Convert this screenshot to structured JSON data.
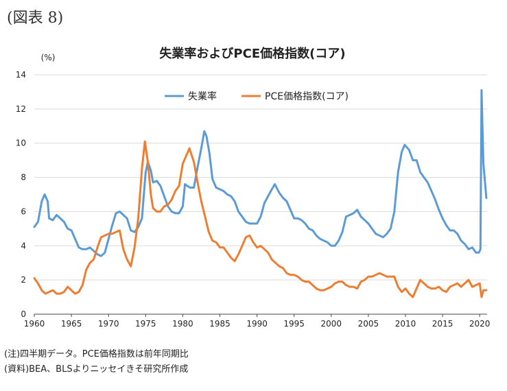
{
  "figure_label": "(図表 8)",
  "notes": {
    "note1": "(注)四半期データ。PCE価格指数は前年同期比",
    "note2": "(資料)BEA、BLSよりニッセイきそ研究所作成"
  },
  "colors": {
    "unemployment": "#5b9bd5",
    "pce": "#ed7d31",
    "grid": "#d9d9d9",
    "axis": "#444444"
  },
  "chart_data": {
    "type": "line",
    "title": "失業率およびPCE価格指数(コア)",
    "ylabel": "(%)",
    "xlabel": "",
    "xlim": [
      1960,
      2021
    ],
    "ylim": [
      0,
      14
    ],
    "yticks": [
      0,
      2,
      4,
      6,
      8,
      10,
      12,
      14
    ],
    "xticks": [
      1960,
      1965,
      1970,
      1975,
      1980,
      1985,
      1990,
      1995,
      2000,
      2005,
      2010,
      2015,
      2020
    ],
    "grid": true,
    "legend_position": "top-right",
    "series": [
      {
        "name": "失業率",
        "points": [
          [
            1960,
            5.1
          ],
          [
            1960.5,
            5.4
          ],
          [
            1961,
            6.6
          ],
          [
            1961.4,
            7.0
          ],
          [
            1961.8,
            6.6
          ],
          [
            1962,
            5.6
          ],
          [
            1962.5,
            5.5
          ],
          [
            1963,
            5.8
          ],
          [
            1963.5,
            5.6
          ],
          [
            1964,
            5.4
          ],
          [
            1964.5,
            5.0
          ],
          [
            1965,
            4.9
          ],
          [
            1965.5,
            4.4
          ],
          [
            1966,
            3.9
          ],
          [
            1966.5,
            3.8
          ],
          [
            1967,
            3.8
          ],
          [
            1967.5,
            3.9
          ],
          [
            1968,
            3.7
          ],
          [
            1968.5,
            3.5
          ],
          [
            1969,
            3.4
          ],
          [
            1969.5,
            3.6
          ],
          [
            1970,
            4.4
          ],
          [
            1970.5,
            5.2
          ],
          [
            1971,
            5.9
          ],
          [
            1971.5,
            6.0
          ],
          [
            1972,
            5.8
          ],
          [
            1972.5,
            5.6
          ],
          [
            1973,
            4.9
          ],
          [
            1973.5,
            4.8
          ],
          [
            1974,
            5.1
          ],
          [
            1974.5,
            5.6
          ],
          [
            1975,
            8.3
          ],
          [
            1975.3,
            8.9
          ],
          [
            1975.7,
            8.4
          ],
          [
            1976,
            7.7
          ],
          [
            1976.5,
            7.8
          ],
          [
            1977,
            7.5
          ],
          [
            1977.5,
            6.9
          ],
          [
            1978,
            6.3
          ],
          [
            1978.5,
            6.0
          ],
          [
            1979,
            5.9
          ],
          [
            1979.5,
            5.9
          ],
          [
            1980,
            6.3
          ],
          [
            1980.3,
            7.6
          ],
          [
            1980.6,
            7.5
          ],
          [
            1981,
            7.4
          ],
          [
            1981.5,
            7.4
          ],
          [
            1982,
            8.6
          ],
          [
            1982.5,
            9.7
          ],
          [
            1982.9,
            10.7
          ],
          [
            1983.2,
            10.4
          ],
          [
            1983.6,
            9.4
          ],
          [
            1984,
            7.9
          ],
          [
            1984.5,
            7.4
          ],
          [
            1985,
            7.3
          ],
          [
            1985.5,
            7.2
          ],
          [
            1986,
            7.0
          ],
          [
            1986.5,
            6.9
          ],
          [
            1987,
            6.6
          ],
          [
            1987.5,
            6.0
          ],
          [
            1988,
            5.7
          ],
          [
            1988.5,
            5.4
          ],
          [
            1989,
            5.3
          ],
          [
            1989.5,
            5.3
          ],
          [
            1990,
            5.3
          ],
          [
            1990.5,
            5.7
          ],
          [
            1991,
            6.5
          ],
          [
            1991.5,
            6.9
          ],
          [
            1992,
            7.3
          ],
          [
            1992.4,
            7.6
          ],
          [
            1993,
            7.1
          ],
          [
            1993.5,
            6.8
          ],
          [
            1994,
            6.6
          ],
          [
            1994.5,
            6.1
          ],
          [
            1995,
            5.6
          ],
          [
            1995.5,
            5.6
          ],
          [
            1996,
            5.5
          ],
          [
            1996.5,
            5.3
          ],
          [
            1997,
            5.0
          ],
          [
            1997.5,
            4.9
          ],
          [
            1998,
            4.6
          ],
          [
            1998.5,
            4.4
          ],
          [
            1999,
            4.3
          ],
          [
            1999.5,
            4.2
          ],
          [
            2000,
            4.0
          ],
          [
            2000.5,
            4.0
          ],
          [
            2001,
            4.3
          ],
          [
            2001.5,
            4.8
          ],
          [
            2002,
            5.7
          ],
          [
            2002.5,
            5.8
          ],
          [
            2003,
            5.9
          ],
          [
            2003.5,
            6.1
          ],
          [
            2004,
            5.7
          ],
          [
            2004.5,
            5.5
          ],
          [
            2005,
            5.3
          ],
          [
            2005.5,
            5.0
          ],
          [
            2006,
            4.7
          ],
          [
            2006.5,
            4.6
          ],
          [
            2007,
            4.5
          ],
          [
            2007.5,
            4.7
          ],
          [
            2008,
            5.0
          ],
          [
            2008.5,
            6.0
          ],
          [
            2009,
            8.3
          ],
          [
            2009.5,
            9.5
          ],
          [
            2009.9,
            9.9
          ],
          [
            2010.5,
            9.6
          ],
          [
            2011,
            9.0
          ],
          [
            2011.5,
            9.0
          ],
          [
            2012,
            8.3
          ],
          [
            2012.5,
            8.0
          ],
          [
            2013,
            7.7
          ],
          [
            2013.5,
            7.2
          ],
          [
            2014,
            6.7
          ],
          [
            2014.5,
            6.1
          ],
          [
            2015,
            5.6
          ],
          [
            2015.5,
            5.2
          ],
          [
            2016,
            4.9
          ],
          [
            2016.5,
            4.9
          ],
          [
            2017,
            4.7
          ],
          [
            2017.5,
            4.3
          ],
          [
            2018,
            4.1
          ],
          [
            2018.5,
            3.8
          ],
          [
            2019,
            3.9
          ],
          [
            2019.5,
            3.6
          ],
          [
            2019.9,
            3.6
          ],
          [
            2020.1,
            3.8
          ],
          [
            2020.25,
            13.1
          ],
          [
            2020.5,
            8.8
          ],
          [
            2020.9,
            6.8
          ]
        ]
      },
      {
        "name": "PCE価格指数(コア)",
        "points": [
          [
            1960,
            2.1
          ],
          [
            1960.5,
            1.8
          ],
          [
            1961,
            1.4
          ],
          [
            1961.5,
            1.2
          ],
          [
            1962,
            1.3
          ],
          [
            1962.5,
            1.4
          ],
          [
            1963,
            1.2
          ],
          [
            1963.5,
            1.2
          ],
          [
            1964,
            1.3
          ],
          [
            1964.5,
            1.6
          ],
          [
            1965,
            1.4
          ],
          [
            1965.5,
            1.2
          ],
          [
            1966,
            1.3
          ],
          [
            1966.5,
            1.7
          ],
          [
            1967,
            2.6
          ],
          [
            1967.5,
            3.0
          ],
          [
            1968,
            3.2
          ],
          [
            1968.5,
            3.9
          ],
          [
            1969,
            4.5
          ],
          [
            1969.5,
            4.6
          ],
          [
            1970,
            4.7
          ],
          [
            1970.5,
            4.7
          ],
          [
            1971,
            4.8
          ],
          [
            1971.5,
            4.9
          ],
          [
            1972,
            3.8
          ],
          [
            1972.5,
            3.2
          ],
          [
            1973,
            2.8
          ],
          [
            1973.5,
            3.9
          ],
          [
            1974,
            5.6
          ],
          [
            1974.5,
            8.5
          ],
          [
            1974.9,
            10.1
          ],
          [
            1975.3,
            8.9
          ],
          [
            1975.7,
            7.0
          ],
          [
            1976,
            6.2
          ],
          [
            1976.5,
            6.0
          ],
          [
            1977,
            6.0
          ],
          [
            1977.5,
            6.3
          ],
          [
            1978,
            6.4
          ],
          [
            1978.5,
            6.7
          ],
          [
            1979,
            7.2
          ],
          [
            1979.5,
            7.5
          ],
          [
            1980,
            8.8
          ],
          [
            1980.5,
            9.3
          ],
          [
            1980.9,
            9.7
          ],
          [
            1981.5,
            8.9
          ],
          [
            1982,
            7.7
          ],
          [
            1982.5,
            6.6
          ],
          [
            1983,
            5.7
          ],
          [
            1983.5,
            4.8
          ],
          [
            1984,
            4.3
          ],
          [
            1984.5,
            4.2
          ],
          [
            1985,
            3.9
          ],
          [
            1985.5,
            3.9
          ],
          [
            1986,
            3.6
          ],
          [
            1986.5,
            3.3
          ],
          [
            1987,
            3.1
          ],
          [
            1987.5,
            3.5
          ],
          [
            1988,
            4.0
          ],
          [
            1988.5,
            4.5
          ],
          [
            1989,
            4.6
          ],
          [
            1989.5,
            4.2
          ],
          [
            1990,
            3.9
          ],
          [
            1990.5,
            4.0
          ],
          [
            1991,
            3.8
          ],
          [
            1991.5,
            3.6
          ],
          [
            1992,
            3.2
          ],
          [
            1992.5,
            3.0
          ],
          [
            1993,
            2.8
          ],
          [
            1993.5,
            2.7
          ],
          [
            1994,
            2.4
          ],
          [
            1994.5,
            2.3
          ],
          [
            1995,
            2.3
          ],
          [
            1995.5,
            2.2
          ],
          [
            1996,
            2.0
          ],
          [
            1996.5,
            1.9
          ],
          [
            1997,
            1.9
          ],
          [
            1997.5,
            1.7
          ],
          [
            1998,
            1.5
          ],
          [
            1998.5,
            1.4
          ],
          [
            1999,
            1.4
          ],
          [
            1999.5,
            1.5
          ],
          [
            2000,
            1.6
          ],
          [
            2000.5,
            1.8
          ],
          [
            2001,
            1.9
          ],
          [
            2001.5,
            1.9
          ],
          [
            2002,
            1.7
          ],
          [
            2002.5,
            1.6
          ],
          [
            2003,
            1.6
          ],
          [
            2003.5,
            1.5
          ],
          [
            2004,
            1.9
          ],
          [
            2004.5,
            2.0
          ],
          [
            2005,
            2.2
          ],
          [
            2005.5,
            2.2
          ],
          [
            2006,
            2.3
          ],
          [
            2006.5,
            2.4
          ],
          [
            2007,
            2.3
          ],
          [
            2007.5,
            2.2
          ],
          [
            2008,
            2.2
          ],
          [
            2008.5,
            2.2
          ],
          [
            2009,
            1.6
          ],
          [
            2009.5,
            1.3
          ],
          [
            2010,
            1.5
          ],
          [
            2010.5,
            1.2
          ],
          [
            2011,
            1.0
          ],
          [
            2011.5,
            1.5
          ],
          [
            2012,
            2.0
          ],
          [
            2012.5,
            1.8
          ],
          [
            2013,
            1.6
          ],
          [
            2013.5,
            1.5
          ],
          [
            2014,
            1.5
          ],
          [
            2014.5,
            1.6
          ],
          [
            2015,
            1.4
          ],
          [
            2015.5,
            1.3
          ],
          [
            2016,
            1.6
          ],
          [
            2016.5,
            1.7
          ],
          [
            2017,
            1.8
          ],
          [
            2017.5,
            1.6
          ],
          [
            2018,
            1.8
          ],
          [
            2018.5,
            2.0
          ],
          [
            2019,
            1.6
          ],
          [
            2019.5,
            1.7
          ],
          [
            2020,
            1.8
          ],
          [
            2020.25,
            1.0
          ],
          [
            2020.5,
            1.4
          ],
          [
            2020.9,
            1.4
          ]
        ]
      }
    ]
  }
}
